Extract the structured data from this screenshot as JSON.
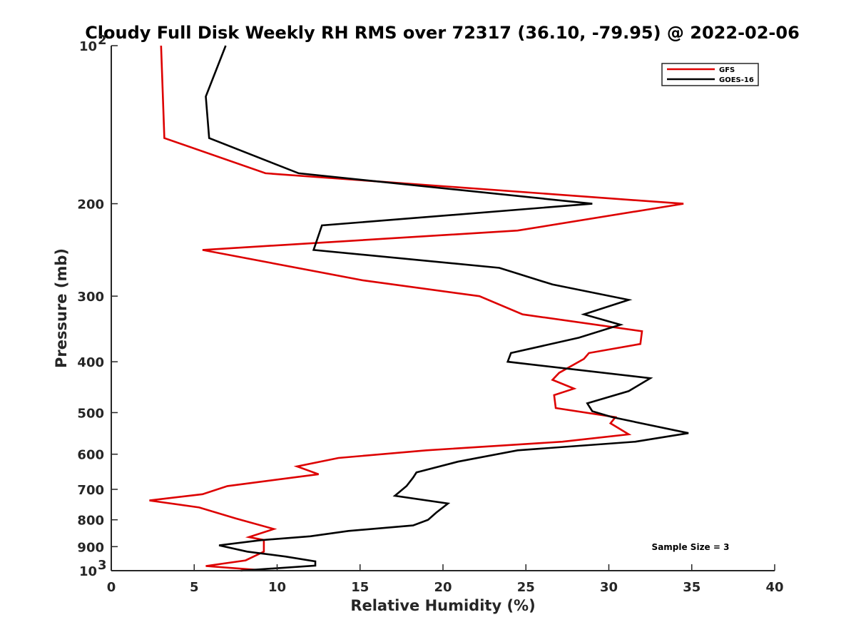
{
  "chart_data": {
    "type": "line",
    "title": "Cloudy Full Disk Weekly RH RMS over 72317 (36.10, -79.95) @ 2022-02-06",
    "xlabel": "Relative Humidity (%)",
    "ylabel": "Pressure (mb)",
    "xlim": [
      0,
      40
    ],
    "ylim": [
      100,
      1000
    ],
    "y_scale": "log",
    "y_reversed": true,
    "grid": false,
    "legend_position": "top-right",
    "x_ticks": [
      "0",
      "5",
      "10",
      "15",
      "20",
      "25",
      "30",
      "35",
      "40"
    ],
    "y_ticks": [
      {
        "value": 100,
        "label": "10",
        "sup": "2"
      },
      {
        "value": 200,
        "label": "200",
        "sup": ""
      },
      {
        "value": 300,
        "label": "300",
        "sup": ""
      },
      {
        "value": 400,
        "label": "400",
        "sup": ""
      },
      {
        "value": 500,
        "label": "500",
        "sup": ""
      },
      {
        "value": 600,
        "label": "600",
        "sup": ""
      },
      {
        "value": 700,
        "label": "700",
        "sup": ""
      },
      {
        "value": 800,
        "label": "800",
        "sup": ""
      },
      {
        "value": 900,
        "label": "900",
        "sup": ""
      },
      {
        "value": 1000,
        "label": "10",
        "sup": "3"
      }
    ],
    "series": [
      {
        "name": "GFS",
        "color": "#dd0000",
        "points": [
          [
            3.0,
            100
          ],
          [
            3.2,
            150
          ],
          [
            9.3,
            175
          ],
          [
            34.5,
            200
          ],
          [
            24.5,
            225
          ],
          [
            5.5,
            245
          ],
          [
            15.2,
            280
          ],
          [
            22.2,
            300
          ],
          [
            24.8,
            325
          ],
          [
            32.0,
            350
          ],
          [
            31.9,
            370
          ],
          [
            28.8,
            385
          ],
          [
            28.5,
            395
          ],
          [
            27.0,
            420
          ],
          [
            26.6,
            433
          ],
          [
            27.9,
            450
          ],
          [
            26.7,
            463
          ],
          [
            26.8,
            490
          ],
          [
            30.4,
            510
          ],
          [
            30.1,
            524
          ],
          [
            31.2,
            550
          ],
          [
            27.2,
            568
          ],
          [
            19.0,
            590
          ],
          [
            13.7,
            610
          ],
          [
            11.2,
            633
          ],
          [
            12.5,
            655
          ],
          [
            7.0,
            690
          ],
          [
            5.5,
            715
          ],
          [
            2.3,
            735
          ],
          [
            5.3,
            758
          ],
          [
            7.5,
            795
          ],
          [
            9.8,
            833
          ],
          [
            8.3,
            863
          ],
          [
            9.2,
            874
          ],
          [
            9.2,
            895
          ],
          [
            9.2,
            920
          ],
          [
            8.1,
            956
          ],
          [
            5.7,
            980
          ],
          [
            9.1,
            998
          ]
        ]
      },
      {
        "name": "GOES-16",
        "color": "#000000",
        "points": [
          [
            6.9,
            100
          ],
          [
            5.7,
            125
          ],
          [
            5.9,
            150
          ],
          [
            11.3,
            175
          ],
          [
            29.0,
            200
          ],
          [
            12.7,
            220
          ],
          [
            12.2,
            245
          ],
          [
            23.4,
            265
          ],
          [
            26.6,
            285
          ],
          [
            31.2,
            305
          ],
          [
            28.5,
            325
          ],
          [
            30.7,
            340
          ],
          [
            28.2,
            360
          ],
          [
            24.1,
            385
          ],
          [
            23.9,
            400
          ],
          [
            32.5,
            430
          ],
          [
            31.2,
            455
          ],
          [
            28.7,
            480
          ],
          [
            29.0,
            497
          ],
          [
            30.2,
            510
          ],
          [
            34.8,
            547
          ],
          [
            31.6,
            568
          ],
          [
            24.5,
            590
          ],
          [
            20.9,
            620
          ],
          [
            18.4,
            650
          ],
          [
            18.2,
            665
          ],
          [
            17.8,
            690
          ],
          [
            17.1,
            720
          ],
          [
            20.3,
            745
          ],
          [
            19.6,
            775
          ],
          [
            19.1,
            800
          ],
          [
            18.2,
            820
          ],
          [
            14.3,
            840
          ],
          [
            12.0,
            860
          ],
          [
            9.0,
            875
          ],
          [
            6.5,
            895
          ],
          [
            8.2,
            920
          ],
          [
            10.5,
            940
          ],
          [
            12.3,
            960
          ],
          [
            12.3,
            978
          ],
          [
            7.8,
            1000
          ]
        ]
      }
    ],
    "annotations": [
      "Sample Size = 3"
    ]
  }
}
